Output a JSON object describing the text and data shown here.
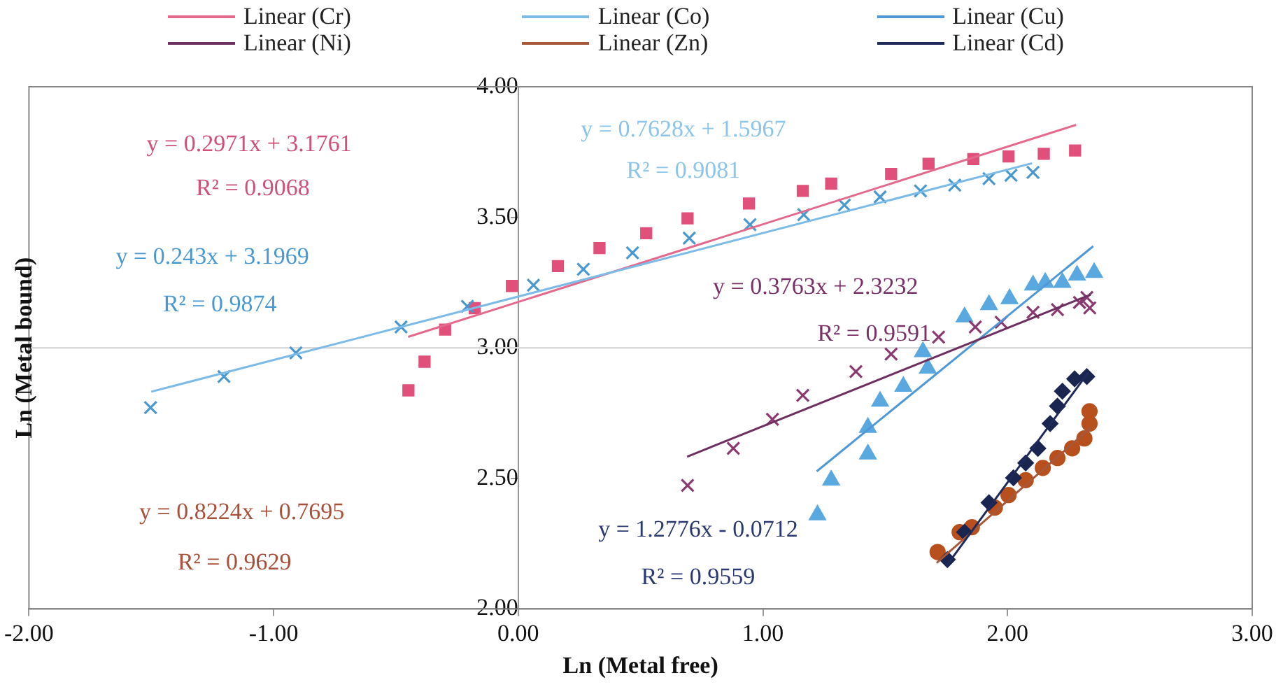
{
  "chart_data": {
    "type": "scatter",
    "xlabel": "Ln (Metal free)",
    "ylabel": "Ln (Metal bound)",
    "xlim": [
      -2,
      3
    ],
    "ylim": [
      2,
      4
    ],
    "xticks": [
      {
        "value": -2,
        "label": "-2.00"
      },
      {
        "value": -1,
        "label": "-1.00"
      },
      {
        "value": 0,
        "label": "0.00"
      },
      {
        "value": 1,
        "label": "1.00"
      },
      {
        "value": 2,
        "label": "2.00"
      },
      {
        "value": 3,
        "label": "3.00"
      }
    ],
    "yticks": [
      {
        "value": 2,
        "label": "2.00"
      },
      {
        "value": 2.5,
        "label": "2.50"
      },
      {
        "value": 3,
        "label": "3.00"
      },
      {
        "value": 3.5,
        "label": "3.50"
      },
      {
        "value": 4,
        "label": "4.00"
      }
    ],
    "grid": false,
    "legend": "top",
    "ref_lines": [
      {
        "axis": "y",
        "value": 3,
        "color": "#d9d9d9"
      }
    ],
    "series": [
      {
        "type": "scatter",
        "marker": "square",
        "color": "#e0507a",
        "x": [
          -0.449,
          -0.383,
          -0.299,
          -0.178,
          -0.026,
          0.162,
          0.332,
          0.523,
          0.692,
          0.943,
          1.163,
          1.279,
          1.524,
          1.677,
          1.86,
          2.004,
          2.148,
          2.276
        ],
        "values": [
          2.837,
          2.947,
          3.07,
          3.152,
          3.237,
          3.313,
          3.382,
          3.439,
          3.496,
          3.553,
          3.601,
          3.629,
          3.666,
          3.705,
          3.723,
          3.733,
          3.743,
          3.756
        ]
      },
      {
        "type": "scatter",
        "marker": "cross",
        "color": "#4a98d0",
        "x": [
          -1.503,
          -1.203,
          -0.909,
          -0.479,
          -0.208,
          0.062,
          0.266,
          0.467,
          0.699,
          0.947,
          1.167,
          1.333,
          1.479,
          1.644,
          1.784,
          1.924,
          2.014,
          2.104
        ],
        "values": [
          2.771,
          2.89,
          2.981,
          3.08,
          3.159,
          3.24,
          3.301,
          3.364,
          3.42,
          3.472,
          3.51,
          3.547,
          3.578,
          3.601,
          3.623,
          3.648,
          3.661,
          3.672
        ]
      },
      {
        "type": "scatter",
        "marker": "triangle",
        "color": "#5aa8e0",
        "x": [
          1.223,
          1.279,
          1.429,
          1.429,
          1.479,
          1.574,
          1.674,
          1.654,
          1.824,
          1.924,
          2.008,
          2.104,
          2.154,
          2.224,
          2.284,
          2.354
        ],
        "values": [
          2.36,
          2.493,
          2.593,
          2.695,
          2.795,
          2.852,
          2.922,
          2.985,
          3.118,
          3.165,
          3.188,
          3.24,
          3.25,
          3.25,
          3.278,
          3.288
        ]
      },
      {
        "type": "scatter",
        "marker": "cross",
        "color": "#8a3a70",
        "x": [
          0.692,
          0.879,
          1.039,
          1.163,
          1.38,
          1.524,
          1.718,
          1.868,
          1.974,
          2.104,
          2.204,
          2.294,
          2.324,
          2.336
        ],
        "values": [
          2.473,
          2.615,
          2.726,
          2.818,
          2.909,
          2.976,
          3.041,
          3.08,
          3.098,
          3.136,
          3.146,
          3.174,
          3.193,
          3.153
        ]
      },
      {
        "type": "scatter",
        "marker": "circle",
        "color": "#b8501e",
        "x": [
          1.714,
          1.804,
          1.854,
          1.948,
          2.004,
          2.074,
          2.144,
          2.204,
          2.264,
          2.314,
          2.335,
          2.335
        ],
        "values": [
          2.218,
          2.294,
          2.313,
          2.388,
          2.436,
          2.493,
          2.54,
          2.578,
          2.615,
          2.653,
          2.71,
          2.757
        ]
      },
      {
        "type": "scatter",
        "marker": "diamond",
        "color": "#1a2550",
        "x": [
          1.754,
          1.824,
          1.924,
          2.024,
          2.074,
          2.124,
          2.174,
          2.204,
          2.224,
          2.274,
          2.324
        ],
        "values": [
          2.189,
          2.294,
          2.407,
          2.502,
          2.559,
          2.615,
          2.71,
          2.777,
          2.834,
          2.881,
          2.89
        ]
      },
      {
        "type": "line",
        "name": "Linear (Cr)",
        "marker": "none",
        "color": "#e36a8c",
        "x": [
          -0.45,
          2.28
        ],
        "values": [
          3.042,
          3.854
        ]
      },
      {
        "type": "line",
        "name": "Linear (Co)",
        "marker": "none",
        "color": "#7cbbe8",
        "x": [
          -1.5,
          2.1
        ],
        "values": [
          2.832,
          3.707
        ]
      },
      {
        "type": "line",
        "name": "Linear (Cu)",
        "marker": "none",
        "color": "#4f98d6",
        "x": [
          1.22,
          2.35
        ],
        "values": [
          2.527,
          3.389
        ]
      },
      {
        "type": "line",
        "name": "Linear (Ni)",
        "marker": "none",
        "color": "#6e3060",
        "x": [
          0.69,
          2.34
        ],
        "values": [
          2.583,
          3.204
        ]
      },
      {
        "type": "line",
        "name": "Linear (Zn)",
        "marker": "none",
        "color": "#a8583a",
        "x": [
          1.71,
          2.34
        ],
        "values": [
          2.176,
          2.694
        ]
      },
      {
        "type": "line",
        "name": "Linear (Cd)",
        "marker": "none",
        "color": "#1f2a5a",
        "x": [
          1.75,
          2.33
        ],
        "values": [
          2.165,
          2.906
        ]
      }
    ],
    "annotations": [
      "y = 0.2971x + 3.1761",
      "R² = 0.9068",
      "y = 0.243x + 3.1969",
      "R² = 0.9874",
      "y = 0.7628x + 1.5967",
      "R² = 0.9081",
      "y = 0.3763x + 2.3232",
      "R² = 0.9591",
      "y = 0.8224x + 0.7695",
      "R² = 0.9629",
      "y = 1.2776x - 0.0712",
      "R² = 0.9559"
    ]
  }
}
